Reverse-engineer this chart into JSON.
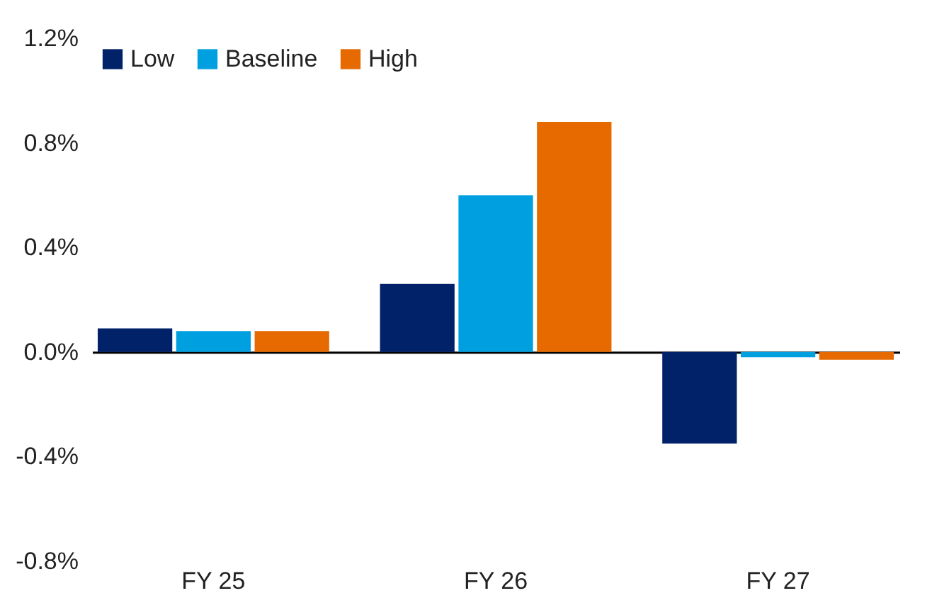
{
  "chart_data": {
    "type": "bar",
    "categories": [
      "FY 25",
      "FY 26",
      "FY 27"
    ],
    "series": [
      {
        "name": "Low",
        "color": "#012169",
        "values": [
          0.09,
          0.26,
          -0.35
        ]
      },
      {
        "name": "Baseline",
        "color": "#009fdf",
        "values": [
          0.08,
          0.6,
          -0.02
        ]
      },
      {
        "name": "High",
        "color": "#e76a00",
        "values": [
          0.08,
          0.88,
          -0.03
        ]
      }
    ],
    "ylim": [
      -0.8,
      1.2
    ],
    "yticks": [
      {
        "value": -0.8,
        "label": "-0.8%"
      },
      {
        "value": -0.4,
        "label": "-0.4%"
      },
      {
        "value": 0,
        "label": "0.0%"
      },
      {
        "value": 0.4,
        "label": "0.4%"
      },
      {
        "value": 0.8,
        "label": "0.8%"
      },
      {
        "value": 1.2,
        "label": "1.2%"
      }
    ],
    "legend": "top left"
  }
}
